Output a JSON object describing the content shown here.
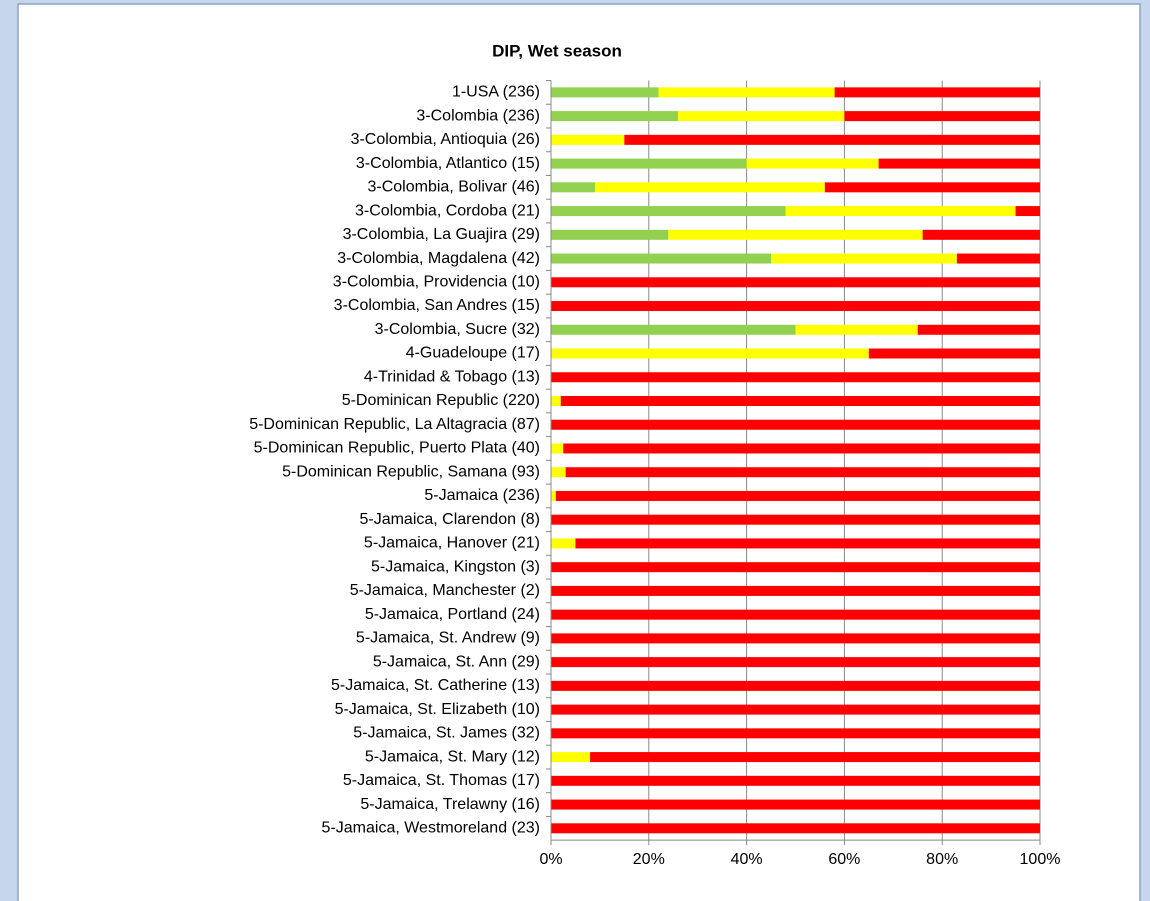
{
  "chart_data": {
    "type": "bar",
    "stacked": true,
    "orientation": "horizontal",
    "title": "DIP, Wet season",
    "categories": [
      "1-USA (236)",
      "3-Colombia (236)",
      "3-Colombia, Antioquia (26)",
      "3-Colombia, Atlantico (15)",
      "3-Colombia, Bolivar (46)",
      "3-Colombia, Cordoba (21)",
      "3-Colombia, La Guajira (29)",
      "3-Colombia, Magdalena (42)",
      "3-Colombia, Providencia (10)",
      "3-Colombia, San Andres (15)",
      "3-Colombia, Sucre (32)",
      "4-Guadeloupe (17)",
      "4-Trinidad & Tobago (13)",
      "5-Dominican Republic (220)",
      "5-Dominican Republic, La Altagracia (87)",
      "5-Dominican Republic, Puerto Plata (40)",
      "5-Dominican Republic, Samana (93)",
      "5-Jamaica (236)",
      "5-Jamaica, Clarendon (8)",
      "5-Jamaica, Hanover (21)",
      "5-Jamaica, Kingston (3)",
      "5-Jamaica, Manchester (2)",
      "5-Jamaica, Portland (24)",
      "5-Jamaica, St. Andrew (9)",
      "5-Jamaica, St. Ann (29)",
      "5-Jamaica, St. Catherine (13)",
      "5-Jamaica, St. Elizabeth (10)",
      "5-Jamaica, St. James (32)",
      "5-Jamaica, St. Mary (12)",
      "5-Jamaica, St. Thomas (17)",
      "5-Jamaica, Trelawny (16)",
      "5-Jamaica, Westmoreland (23)"
    ],
    "series": [
      {
        "color": "#92d050",
        "values": [
          22,
          26,
          0,
          40,
          9,
          48,
          24,
          45,
          0,
          0,
          50,
          0,
          0,
          0,
          0,
          0,
          0,
          0,
          0,
          0,
          0,
          0,
          0,
          0,
          0,
          0,
          0,
          0,
          0,
          0,
          0,
          0
        ]
      },
      {
        "color": "#ffff00",
        "values": [
          36,
          34,
          15,
          27,
          47,
          47,
          52,
          38,
          0,
          0,
          25,
          65,
          0,
          2,
          0,
          2.5,
          3,
          1,
          0,
          5,
          0,
          0,
          0,
          0,
          0,
          0,
          0,
          0,
          8,
          0,
          0,
          0
        ]
      },
      {
        "color": "#ff0000",
        "values": [
          42,
          40,
          85,
          33,
          44,
          5,
          24,
          17,
          100,
          100,
          25,
          35,
          100,
          98,
          100,
          97.5,
          97,
          99,
          100,
          95,
          100,
          100,
          100,
          100,
          100,
          100,
          100,
          100,
          92,
          100,
          100,
          100
        ]
      }
    ],
    "xlim": [
      0,
      100
    ],
    "xticks": [
      {
        "value": 0,
        "label": "0%"
      },
      {
        "value": 20,
        "label": "20%"
      },
      {
        "value": 40,
        "label": "40%"
      },
      {
        "value": 60,
        "label": "60%"
      },
      {
        "value": 80,
        "label": "80%"
      },
      {
        "value": 100,
        "label": "100%"
      }
    ],
    "grid": true
  }
}
